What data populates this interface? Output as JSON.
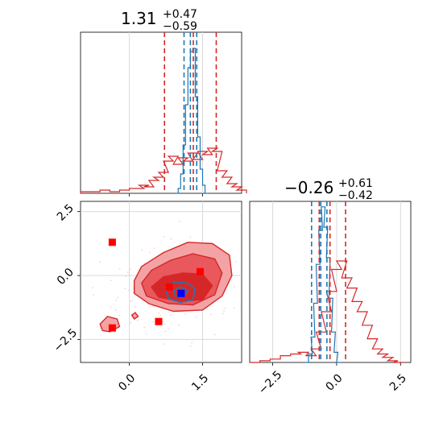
{
  "chart_data": {
    "type": "corner",
    "colors": {
      "red": "#d62728",
      "blue": "#1f77b4",
      "red_light": "#f4a3a5",
      "red_mid": "#e8585c",
      "grid": "#d9d9d9"
    },
    "panels": {
      "param1_hist": {
        "title": {
          "median": "1.31",
          "upper": "+0.47",
          "lower": "−0.59"
        },
        "xlim": [
          -1.0,
          2.3
        ],
        "red_quantiles": [
          0.72,
          1.31,
          1.78
        ],
        "blue_quantiles": [
          1.12,
          1.25,
          1.38
        ],
        "red_hist": [
          [
            -1.0,
            0.01
          ],
          [
            -0.8,
            0.01
          ],
          [
            -0.6,
            0.02
          ],
          [
            -0.4,
            0.01
          ],
          [
            -0.2,
            0.02
          ],
          [
            0.0,
            0.03
          ],
          [
            0.1,
            0.03
          ],
          [
            0.2,
            0.05
          ],
          [
            0.3,
            0.04
          ],
          [
            0.4,
            0.08
          ],
          [
            0.5,
            0.1
          ],
          [
            0.6,
            0.13
          ],
          [
            0.7,
            0.2
          ],
          [
            0.8,
            0.23
          ],
          [
            0.9,
            0.18
          ],
          [
            1.0,
            0.22
          ],
          [
            1.1,
            0.2
          ],
          [
            1.2,
            0.25
          ],
          [
            1.3,
            0.21
          ],
          [
            1.4,
            0.26
          ],
          [
            1.5,
            0.24
          ],
          [
            1.6,
            0.28
          ],
          [
            1.7,
            0.26
          ],
          [
            1.8,
            0.14
          ],
          [
            1.9,
            0.1
          ],
          [
            2.0,
            0.06
          ],
          [
            2.1,
            0.04
          ],
          [
            2.2,
            0.02
          ]
        ],
        "blue_hist": [
          [
            0.95,
            0.0
          ],
          [
            1.0,
            0.03
          ],
          [
            1.05,
            0.12
          ],
          [
            1.1,
            0.3
          ],
          [
            1.15,
            0.55
          ],
          [
            1.2,
            0.78
          ],
          [
            1.25,
            0.88
          ],
          [
            1.3,
            0.9
          ],
          [
            1.35,
            0.6
          ],
          [
            1.4,
            0.35
          ],
          [
            1.45,
            0.15
          ],
          [
            1.5,
            0.05
          ],
          [
            1.55,
            0.0
          ]
        ]
      },
      "scatter_2d": {
        "xlim": [
          -1.0,
          2.3
        ],
        "ylim": [
          -3.4,
          2.9
        ],
        "xticks": [
          0.0,
          1.5
        ],
        "xtick_labels": [
          "0.0",
          "1.5"
        ],
        "yticks": [
          2.5,
          0.0,
          -2.5
        ],
        "ytick_labels": [
          "2.5",
          "0.0",
          "−2.5"
        ],
        "red_squares": [
          [
            -0.35,
            1.3
          ],
          [
            -0.35,
            -2.05
          ],
          [
            0.6,
            -1.8
          ],
          [
            0.82,
            -0.45
          ],
          [
            1.45,
            0.15
          ]
        ],
        "blue_square": [
          1.06,
          -0.7
        ],
        "red_contour_outer": [
          [
            0.1,
            -0.2
          ],
          [
            0.25,
            0.35
          ],
          [
            0.7,
            0.9
          ],
          [
            1.2,
            1.3
          ],
          [
            1.7,
            1.25
          ],
          [
            2.05,
            0.8
          ],
          [
            2.1,
            0.0
          ],
          [
            1.9,
            -0.8
          ],
          [
            1.5,
            -1.35
          ],
          [
            0.9,
            -1.4
          ],
          [
            0.4,
            -1.1
          ],
          [
            0.1,
            -0.7
          ]
        ],
        "red_contour_mid": [
          [
            0.25,
            -0.3
          ],
          [
            0.45,
            0.2
          ],
          [
            0.85,
            0.6
          ],
          [
            1.3,
            0.85
          ],
          [
            1.75,
            0.65
          ],
          [
            1.9,
            0.1
          ],
          [
            1.75,
            -0.75
          ],
          [
            1.3,
            -1.15
          ],
          [
            0.8,
            -1.1
          ],
          [
            0.35,
            -0.8
          ]
        ],
        "red_contour_inner": [
          [
            0.45,
            -0.45
          ],
          [
            0.7,
            -0.05
          ],
          [
            1.1,
            0.1
          ],
          [
            1.5,
            0.05
          ],
          [
            1.7,
            -0.4
          ],
          [
            1.5,
            -0.95
          ],
          [
            1.05,
            -1.0
          ],
          [
            0.6,
            -0.85
          ]
        ],
        "red_islands": [
          [
            [
              -0.6,
              -1.9
            ],
            [
              -0.45,
              -1.6
            ],
            [
              -0.25,
              -1.7
            ],
            [
              -0.2,
              -2.0
            ],
            [
              -0.4,
              -2.2
            ],
            [
              -0.55,
              -2.15
            ]
          ],
          [
            [
              0.05,
              -1.55
            ],
            [
              0.12,
              -1.45
            ],
            [
              0.18,
              -1.6
            ],
            [
              0.1,
              -1.7
            ]
          ]
        ],
        "blue_contour": [
          [
            0.75,
            -0.55
          ],
          [
            0.9,
            -0.25
          ],
          [
            1.2,
            -0.3
          ],
          [
            1.35,
            -0.55
          ],
          [
            1.3,
            -0.95
          ],
          [
            1.05,
            -1.05
          ],
          [
            0.8,
            -0.9
          ]
        ],
        "blue_contour_inner": [
          [
            0.9,
            -0.6
          ],
          [
            1.05,
            -0.45
          ],
          [
            1.2,
            -0.6
          ],
          [
            1.1,
            -0.85
          ],
          [
            0.95,
            -0.8
          ]
        ]
      },
      "param2_hist": {
        "title": {
          "median": "−0.26",
          "upper": "+0.61",
          "lower": "−0.42"
        },
        "xlim": [
          -3.4,
          2.9
        ],
        "xticks": [
          -2.5,
          0.0,
          2.5
        ],
        "xtick_labels": [
          "−2.5",
          "0.0",
          "2.5"
        ],
        "red_quantiles": [
          -0.68,
          -0.26,
          0.35
        ],
        "blue_quantiles": [
          -0.98,
          -0.62,
          -0.38
        ],
        "red_hist": [
          [
            -3.4,
            0.0
          ],
          [
            -3.0,
            0.01
          ],
          [
            -2.6,
            0.02
          ],
          [
            -2.2,
            0.04
          ],
          [
            -1.8,
            0.05
          ],
          [
            -1.5,
            0.06
          ],
          [
            -1.2,
            0.04
          ],
          [
            -1.0,
            0.08
          ],
          [
            -0.8,
            0.18
          ],
          [
            -0.6,
            0.3
          ],
          [
            -0.4,
            0.42
          ],
          [
            -0.2,
            0.55
          ],
          [
            0.0,
            0.6
          ],
          [
            0.2,
            0.5
          ],
          [
            0.4,
            0.44
          ],
          [
            0.6,
            0.36
          ],
          [
            0.8,
            0.3
          ],
          [
            1.0,
            0.22
          ],
          [
            1.2,
            0.14
          ],
          [
            1.4,
            0.08
          ],
          [
            1.6,
            0.05
          ],
          [
            1.8,
            0.03
          ],
          [
            2.0,
            0.01
          ],
          [
            2.2,
            0.0
          ]
        ],
        "blue_hist": [
          [
            -1.25,
            0.0
          ],
          [
            -1.1,
            0.05
          ],
          [
            -1.0,
            0.15
          ],
          [
            -0.9,
            0.35
          ],
          [
            -0.8,
            0.58
          ],
          [
            -0.7,
            0.78
          ],
          [
            -0.6,
            0.92
          ],
          [
            -0.5,
            0.8
          ],
          [
            -0.4,
            0.62
          ],
          [
            -0.3,
            0.38
          ],
          [
            -0.2,
            0.18
          ],
          [
            -0.1,
            0.06
          ],
          [
            0.0,
            0.0
          ]
        ]
      }
    }
  }
}
